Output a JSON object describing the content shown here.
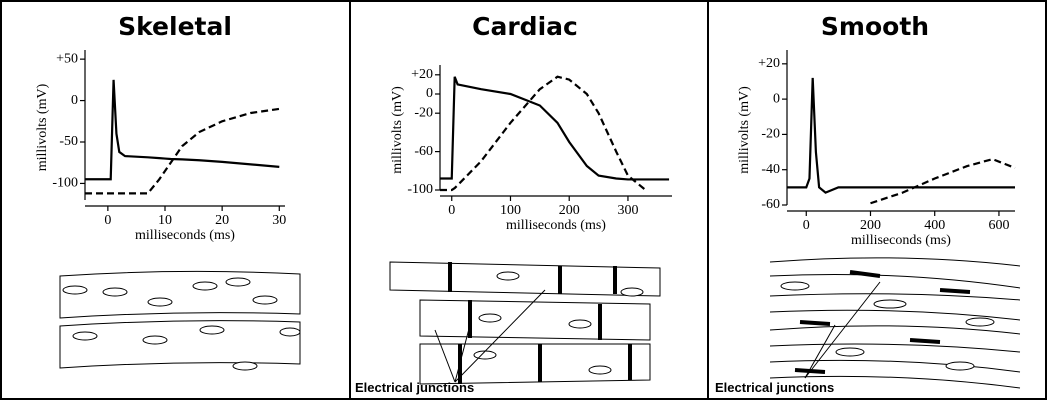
{
  "chart_data": [
    {
      "type": "line",
      "title": "Skeletal",
      "xlabel": "milliseconds (ms)",
      "ylabel": "millivolts (mV)",
      "x": [
        -4,
        0,
        0.5,
        1,
        1.5,
        2,
        3,
        7,
        9,
        10,
        11,
        13,
        16,
        20,
        25,
        30
      ],
      "series": [
        {
          "style": "solid",
          "color": "#000000",
          "values": [
            -95,
            -95,
            -95,
            25,
            -40,
            -62,
            -67,
            -68.5,
            -69.5,
            -70,
            -70.5,
            -71,
            -72,
            -74,
            -77,
            -80
          ]
        },
        {
          "style": "dashed",
          "color": "#000000",
          "values": [
            -112,
            -112,
            -112,
            -112,
            -112,
            -112,
            -112,
            -112,
            -95,
            -85,
            -75,
            -55,
            -38,
            -25,
            -15,
            -10
          ]
        }
      ],
      "xlim": [
        -4,
        31
      ],
      "xticks": [
        0,
        10,
        20,
        30
      ],
      "ylim": [
        -120,
        55
      ],
      "yticks": [
        {
          "value": 50,
          "label": "+50"
        },
        0,
        -50,
        -100
      ]
    },
    {
      "type": "line",
      "title": "Cardiac",
      "xlabel": "milliseconds (ms)",
      "ylabel": "millivolts (mV)",
      "x": [
        -20,
        0,
        5,
        10,
        50,
        100,
        150,
        180,
        200,
        230,
        250,
        280,
        300,
        330,
        350,
        370
      ],
      "series": [
        {
          "style": "solid",
          "color": "#000000",
          "values": [
            -88,
            -88,
            18,
            10,
            5,
            0,
            -12,
            -30,
            -50,
            -75,
            -85,
            -88,
            -89,
            -89,
            -89,
            -89
          ]
        },
        {
          "style": "dashed",
          "color": "#000000",
          "values": [
            -100,
            -100,
            -98,
            -95,
            -70,
            -30,
            5,
            18,
            15,
            0,
            -20,
            -60,
            -85,
            -100,
            null,
            null
          ]
        }
      ],
      "xlim": [
        -20,
        375
      ],
      "xticks": [
        0,
        100,
        200,
        300
      ],
      "ylim": [
        -100,
        25
      ],
      "yticks": [
        {
          "value": 20,
          "label": "+20"
        },
        0,
        -20,
        -60,
        -100
      ],
      "annotation": "Electrical junctions"
    },
    {
      "type": "line",
      "title": "Smooth",
      "xlabel": "milliseconds (ms)",
      "ylabel": "millivolts (mV)",
      "x": [
        -60,
        0,
        10,
        20,
        30,
        40,
        60,
        100,
        200,
        300,
        400,
        500,
        580,
        650
      ],
      "series": [
        {
          "style": "solid",
          "color": "#000000",
          "values": [
            -50,
            -50,
            -45,
            12,
            -30,
            -50,
            -53,
            -50,
            -50,
            -50,
            -50,
            -50,
            -50,
            -50
          ]
        },
        {
          "style": "dashed",
          "color": "#000000",
          "values": [
            null,
            null,
            null,
            null,
            null,
            null,
            null,
            null,
            -59,
            -53,
            -45,
            -38,
            -34,
            -39
          ]
        }
      ],
      "xlim": [
        -60,
        650
      ],
      "xticks": [
        0,
        200,
        400,
        600
      ],
      "ylim": [
        -60,
        25
      ],
      "yticks": [
        {
          "value": 20,
          "label": "+20"
        },
        0,
        -20,
        -40,
        -60
      ],
      "annotation": "Electrical junctions"
    }
  ]
}
